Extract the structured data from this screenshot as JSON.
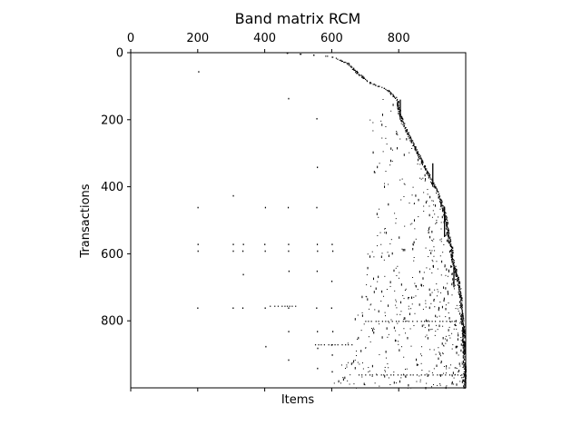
{
  "chart_data": {
    "type": "heatmap",
    "subtype": "sparsity-pattern",
    "title": "Band matrix RCM",
    "xlabel": "Items",
    "ylabel": "Transactions",
    "xlim": [
      0,
      1000
    ],
    "ylim": [
      1000,
      0
    ],
    "x_ticks_top": [
      0,
      200,
      400,
      600,
      800
    ],
    "x_ticks_bottom_labels": false,
    "y_ticks": [
      0,
      200,
      400,
      600,
      800
    ],
    "grid": false,
    "legend": "none",
    "marker_color": "#000000",
    "band_edge": [
      [
        0,
        470
      ],
      [
        10,
        600
      ],
      [
        30,
        650
      ],
      [
        60,
        680
      ],
      [
        90,
        720
      ],
      [
        110,
        770
      ],
      [
        140,
        800
      ],
      [
        180,
        805
      ],
      [
        220,
        820
      ],
      [
        260,
        840
      ],
      [
        300,
        860
      ],
      [
        340,
        880
      ],
      [
        380,
        900
      ],
      [
        420,
        920
      ],
      [
        460,
        935
      ],
      [
        500,
        945
      ],
      [
        540,
        950
      ],
      [
        580,
        960
      ],
      [
        620,
        965
      ],
      [
        660,
        975
      ],
      [
        700,
        985
      ],
      [
        760,
        990
      ],
      [
        820,
        995
      ],
      [
        880,
        998
      ],
      [
        940,
        1000
      ],
      [
        1000,
        1000
      ]
    ],
    "vertical_segments": [
      {
        "x": 803,
        "y": [
          140,
          200
        ]
      },
      {
        "x": 900,
        "y": [
          330,
          400
        ]
      },
      {
        "x": 935,
        "y": [
          460,
          550
        ]
      },
      {
        "x": 963,
        "y": [
          640,
          700
        ]
      },
      {
        "x": 990,
        "y": [
          820,
          850
        ]
      },
      {
        "x": 993,
        "y": [
          860,
          900
        ]
      },
      {
        "x": 998,
        "y": [
          930,
          1000
        ]
      }
    ],
    "horizontal_segments": [
      {
        "y": 755,
        "x": [
          415,
          500
        ]
      },
      {
        "y": 800,
        "x": [
          700,
          970
        ]
      },
      {
        "y": 870,
        "x": [
          550,
          660
        ]
      },
      {
        "y": 960,
        "x": [
          680,
          990
        ]
      }
    ],
    "sparse_columns": [
      {
        "x": 200,
        "rows": [
          55,
          460,
          570,
          590,
          760
        ]
      },
      {
        "x": 305,
        "rows": [
          425,
          570,
          590,
          760
        ]
      },
      {
        "x": 335,
        "rows": [
          570,
          590,
          660,
          760
        ]
      },
      {
        "x": 400,
        "rows": [
          460,
          570,
          590,
          760,
          875
        ]
      },
      {
        "x": 470,
        "rows": [
          135,
          460,
          570,
          590,
          650,
          760,
          830,
          915
        ]
      },
      {
        "x": 555,
        "rows": [
          195,
          340,
          460,
          570,
          590,
          650,
          760,
          830,
          880,
          940
        ]
      },
      {
        "x": 600,
        "rows": [
          570,
          590,
          680,
          760,
          830,
          870,
          900,
          950
        ]
      }
    ]
  }
}
